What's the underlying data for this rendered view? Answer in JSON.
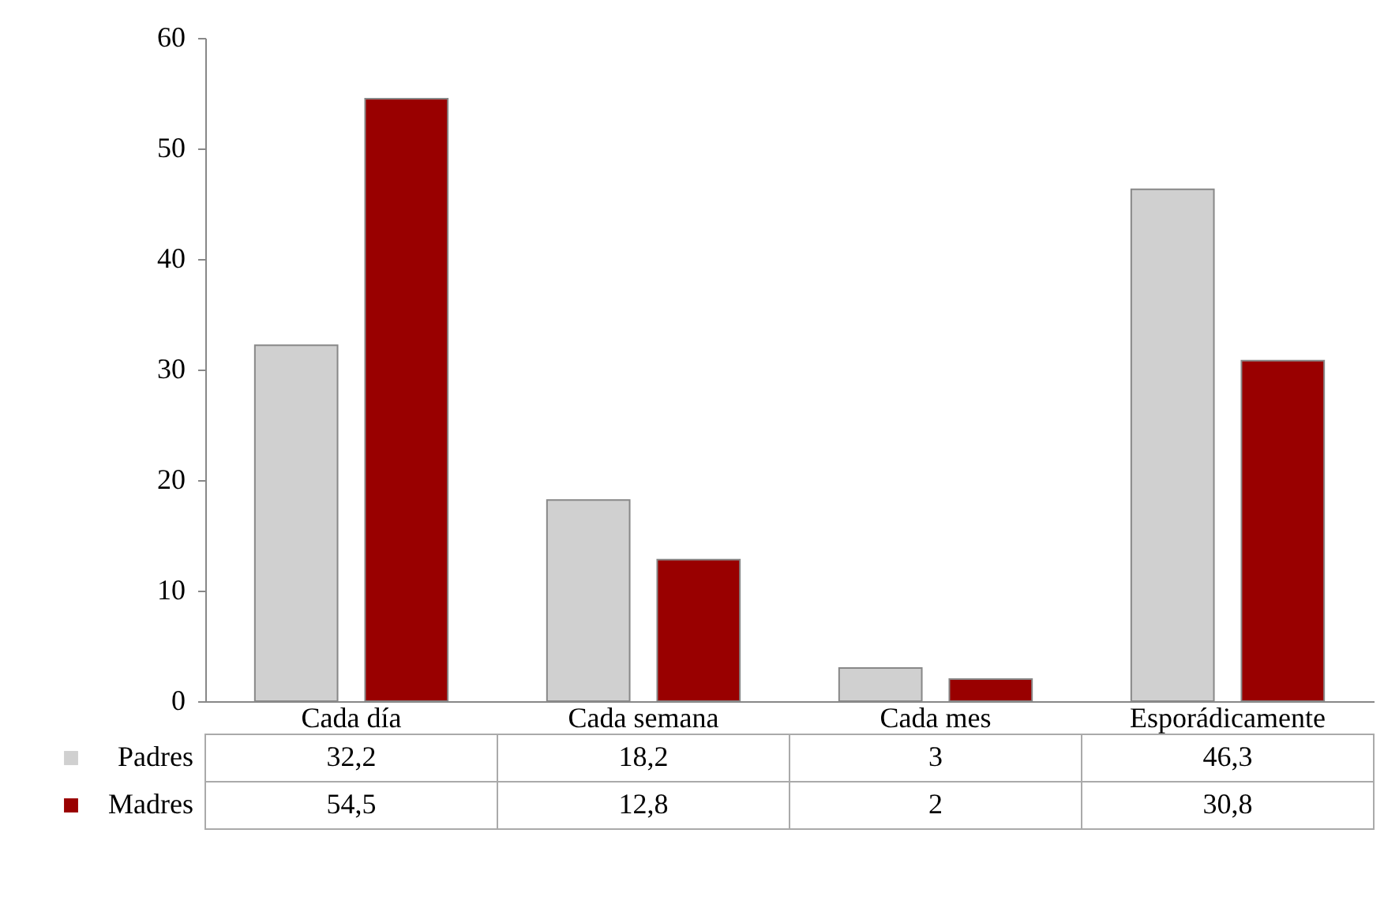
{
  "chart_data": {
    "type": "bar",
    "categories": [
      "Cada día",
      "Cada semana",
      "Cada mes",
      "Esporádicamente"
    ],
    "series": [
      {
        "name": "Padres",
        "color": "#d0d0d0",
        "values": [
          32.2,
          18.2,
          3,
          46.3
        ],
        "value_labels": [
          "32,2",
          "18,2",
          "3",
          "46,3"
        ]
      },
      {
        "name": "Madres",
        "color": "#990000",
        "values": [
          54.5,
          12.8,
          2,
          30.8
        ],
        "value_labels": [
          "54,5",
          "12,8",
          "2",
          "30,8"
        ]
      }
    ],
    "ylim": [
      0,
      60
    ],
    "yticks": [
      0,
      10,
      20,
      30,
      40,
      50,
      60
    ],
    "grid": false,
    "legend": "bottom"
  }
}
